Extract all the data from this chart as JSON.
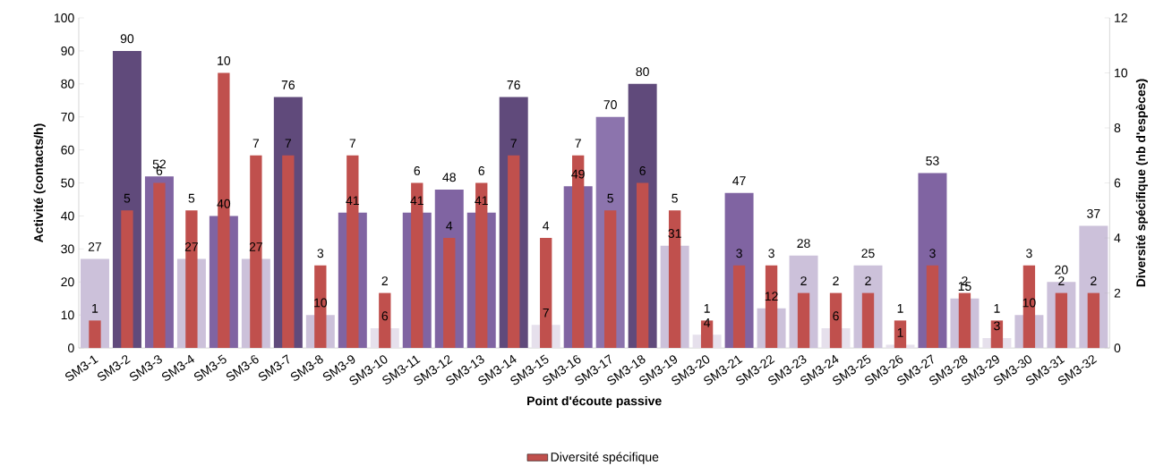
{
  "chart_data": {
    "type": "bar",
    "xlabel": "Point d'écoute passive",
    "ylabel": "Activité (contacts/h)",
    "y2label": "Diversité spécifique (nb d'espèces)",
    "categories": [
      "SM3-1",
      "SM3-2",
      "SM3-3",
      "SM3-4",
      "SM3-5",
      "SM3-6",
      "SM3-7",
      "SM3-8",
      "SM3-9",
      "SM3-10",
      "SM3-11",
      "SM3-12",
      "SM3-13",
      "SM3-14",
      "SM3-15",
      "SM3-16",
      "SM3-17",
      "SM3-18",
      "SM3-19",
      "SM3-20",
      "SM3-21",
      "SM3-22",
      "SM3-23",
      "SM3-24",
      "SM3-25",
      "SM3-26",
      "SM3-27",
      "SM3-28",
      "SM3-29",
      "SM3-30",
      "SM3-31",
      "SM3-32"
    ],
    "series": [
      {
        "values": [
          27,
          90,
          52,
          27,
          40,
          27,
          76,
          10,
          41,
          6,
          41,
          48,
          41,
          76,
          7,
          49,
          70,
          80,
          31,
          4,
          47,
          12,
          28,
          6,
          25,
          1,
          53,
          15,
          3,
          10,
          20,
          37
        ],
        "colors": [
          "#ccc1da",
          "#604a7b",
          "#8064a2",
          "#ccc1da",
          "#8064a2",
          "#ccc1da",
          "#604a7b",
          "#ccc1da",
          "#8064a2",
          "#e6e0ec",
          "#8064a2",
          "#8064a2",
          "#8064a2",
          "#604a7b",
          "#e6e0ec",
          "#8064a2",
          "#8c74ad",
          "#604a7b",
          "#ccc1da",
          "#e6e0ec",
          "#8064a2",
          "#ccc1da",
          "#ccc1da",
          "#e6e0ec",
          "#ccc1da",
          "#e6e0ec",
          "#8064a2",
          "#ccc1da",
          "#e6e0ec",
          "#ccc1da",
          "#ccc1da",
          "#ccc1da"
        ]
      },
      {
        "name": "Diversité spécifique",
        "color": "#c0504d",
        "axis": "y2",
        "values": [
          1,
          5,
          6,
          5,
          10,
          7,
          7,
          3,
          7,
          2,
          6,
          4,
          6,
          7,
          4,
          7,
          5,
          6,
          5,
          1,
          3,
          3,
          2,
          2,
          2,
          1,
          3,
          2,
          1,
          3,
          2,
          2
        ]
      }
    ],
    "ylim": [
      0,
      100
    ],
    "yticks": [
      0,
      10,
      20,
      30,
      40,
      50,
      60,
      70,
      80,
      90,
      100
    ],
    "y2lim": [
      0,
      12
    ],
    "y2ticks": [
      0,
      2,
      4,
      6,
      8,
      10,
      12
    ],
    "data_labels": true,
    "legend": "bottom"
  }
}
